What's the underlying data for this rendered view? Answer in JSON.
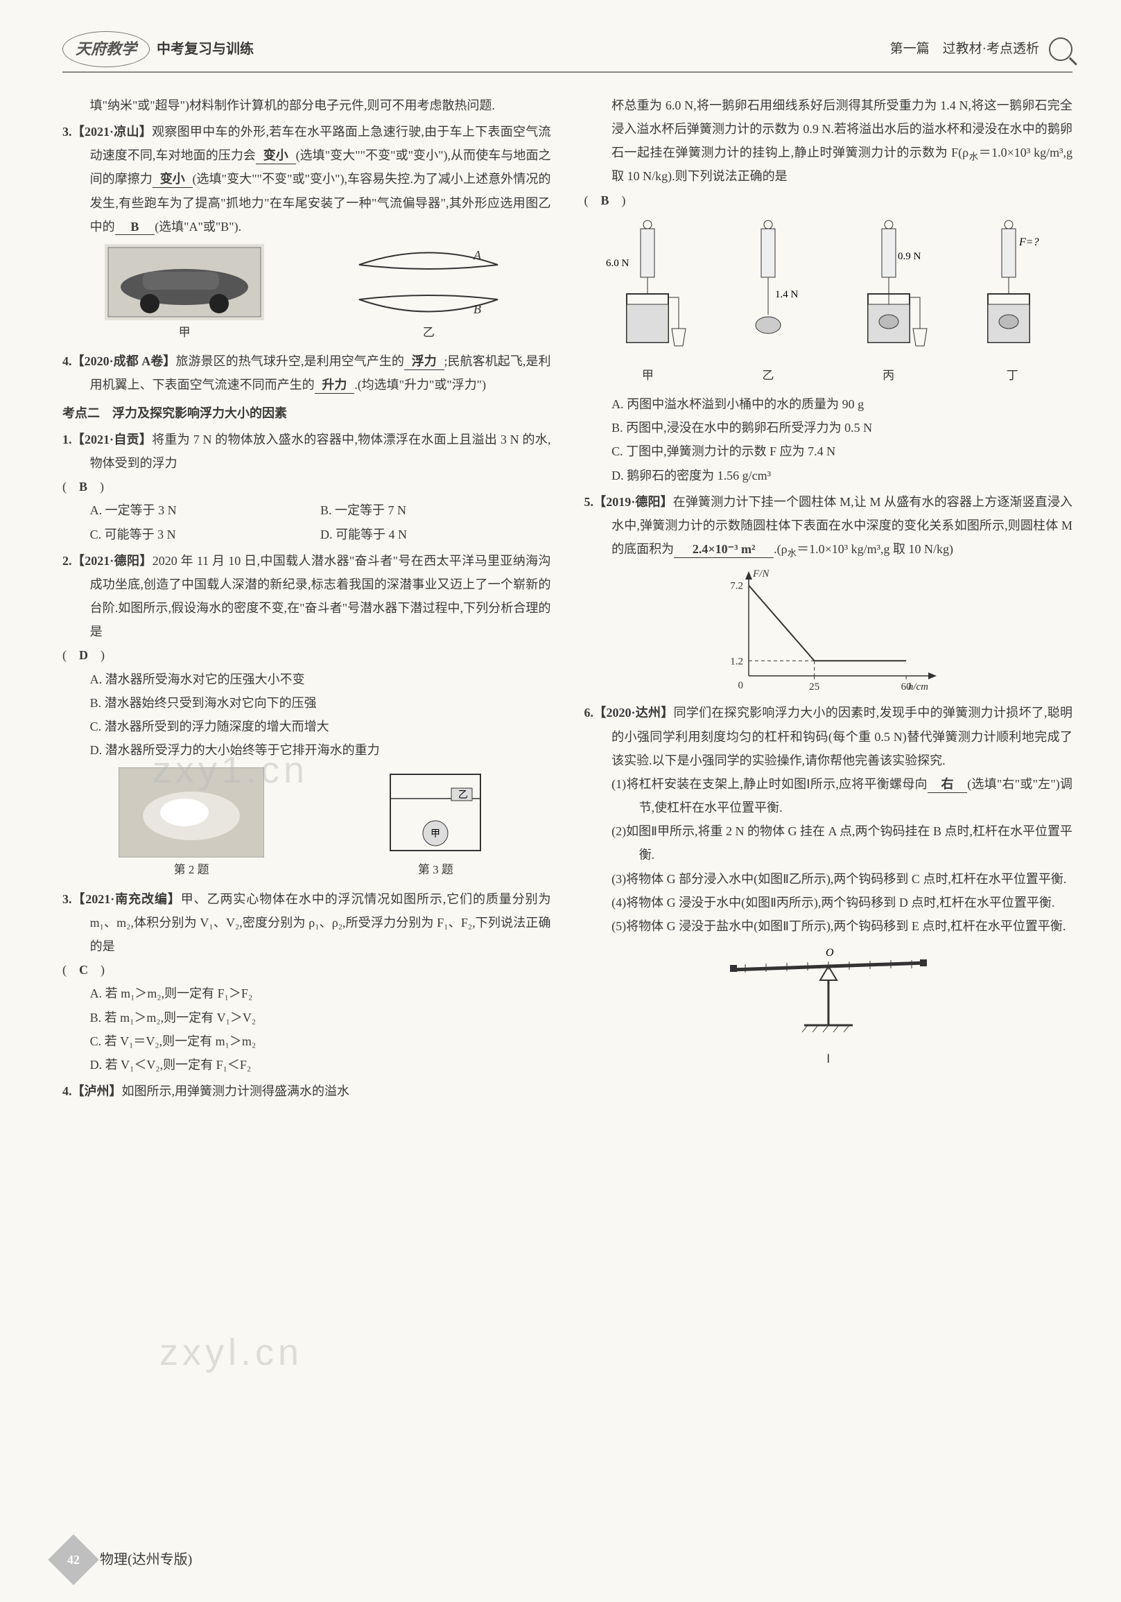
{
  "header": {
    "logo": "天府教学",
    "logo_sub": "中考复习与训练",
    "right": "第一篇　过教材·考点透析"
  },
  "footer": {
    "page_num": "42",
    "label": "物理(达州专版)"
  },
  "left": {
    "pre_text": "填\"纳米\"或\"超导\")材料制作计算机的部分电子元件,则可不用考虑散热问题.",
    "q3": {
      "src": "3.【2021·凉山】",
      "text_a": "观察图甲中车的外形,若车在水平路面上急速行驶,由于车上下表面空气流动速度不同,车对地面的压力会",
      "blank1": "变小",
      "text_b": "(选填\"变大\"\"不变\"或\"变小\"),从而使车与地面之间的摩擦力",
      "blank2": "变小",
      "text_c": "(选填\"变大\"\"不变\"或\"变小\"),车容易失控.为了减小上述意外情况的发生,有些跑车为了提高\"抓地力\"在车尾安装了一种\"气流偏导器\",其外形应选用图乙中的",
      "blank3": "B",
      "text_d": "(选填\"A\"或\"B\")."
    },
    "q4": {
      "src": "4.【2020·成都 A卷】",
      "text_a": "旅游景区的热气球升空,是利用空气产生的",
      "blank1": "浮力",
      "text_b": ";民航客机起飞,是利用机翼上、下表面空气流速不同而产生的",
      "blank2": "升力",
      "text_c": ".(均选填\"升力\"或\"浮力\")"
    },
    "topic2": "考点二　浮力及探究影响浮力大小的因素",
    "t2q1": {
      "src": "1.【2021·自贡】",
      "text": "将重为 7 N 的物体放入盛水的容器中,物体漂浮在水面上且溢出 3 N 的水,物体受到的浮力",
      "answer": "B",
      "opts": {
        "A": "A. 一定等于 3 N",
        "B": "B. 一定等于 7 N",
        "C": "C. 可能等于 3 N",
        "D": "D. 可能等于 4 N"
      }
    },
    "t2q2": {
      "src": "2.【2021·德阳】",
      "text": "2020 年 11 月 10 日,中国载人潜水器\"奋斗者\"号在西太平洋马里亚纳海沟成功坐底,创造了中国载人深潜的新纪录,标志着我国的深潜事业又迈上了一个崭新的台阶.如图所示,假设海水的密度不变,在\"奋斗者\"号潜水器下潜过程中,下列分析合理的是",
      "answer": "D",
      "opts": {
        "A": "A. 潜水器所受海水对它的压强大小不变",
        "B": "B. 潜水器始终只受到海水对它向下的压强",
        "C": "C. 潜水器所受到的浮力随深度的增大而增大",
        "D": "D. 潜水器所受浮力的大小始终等于它排开海水的重力"
      },
      "cap2": "第 2 题",
      "cap3": "第 3 题"
    },
    "t2q3": {
      "src": "3.【2021·南充改编】",
      "text_a": "甲、乙两实心物体在水中的浮沉情况如图所示,它们的质量分别为 m₁、m₂,体积分别为 V₁、V₂,密度分别为 ρ₁、ρ₂,所受浮力分别为 F₁、F₂,下列说法正确的是",
      "answer": "C",
      "opts": {
        "A": "A. 若 m₁＞m₂,则一定有 F₁＞F₂",
        "B": "B. 若 m₁＞m₂,则一定有 V₁＞V₂",
        "C": "C. 若 V₁＝V₂,则一定有 m₁＞m₂",
        "D": "D. 若 V₁＜V₂,则一定有 F₁＜F₂"
      }
    },
    "t2q4": {
      "src": "4.【泸州】",
      "text": "如图所示,用弹簧测力计测得盛满水的溢水"
    }
  },
  "right": {
    "cont_a": "杯总重为 6.0 N,将一鹅卵石用细线系好后测得其所受重力为 1.4 N,将这一鹅卵石完全浸入溢水杯后弹簧测力计的示数为 0.9 N.若将溢出水后的溢水杯和浸没在水中的鹅卵石一起挂在弹簧测力计的挂钩上,静止时弹簧测力计的示数为 F(ρ",
    "cont_b": "＝1.0×10³ kg/m³,g 取 10 N/kg).则下列说法正确的是",
    "cont_answer": "B",
    "fig_labels": {
      "a": "甲",
      "b": "乙",
      "c": "丙",
      "d": "丁",
      "v1": "6.0 N",
      "v2": "1.4 N",
      "v3": "0.9 N",
      "v4": "F=?"
    },
    "r_opts": {
      "A": "A. 丙图中溢水杯溢到小桶中的水的质量为 90 g",
      "B": "B. 丙图中,浸没在水中的鹅卵石所受浮力为 0.5 N",
      "C": "C. 丁图中,弹簧测力计的示数 F 应为 7.4 N",
      "D": "D. 鹅卵石的密度为 1.56 g/cm³"
    },
    "q5": {
      "src": "5.【2019·德阳】",
      "text_a": "在弹簧测力计下挂一个圆柱体 M,让 M 从盛有水的容器上方逐渐竖直浸入水中,弹簧测力计的示数随圆柱体下表面在水中深度的变化关系如图所示,则圆柱体 M 的底面积为",
      "blank": "2.4×10⁻³ m²",
      "text_b": ".(ρ",
      "text_c": "＝1.0×10³ kg/m³,g 取 10 N/kg)"
    },
    "chart": {
      "type": "line",
      "x_label": "h/cm",
      "y_label": "F/N",
      "y_ticks": [
        "1.2",
        "7.2"
      ],
      "x_ticks": [
        "0",
        "25",
        "60"
      ],
      "points": [
        [
          0,
          7.2
        ],
        [
          25,
          1.2
        ],
        [
          60,
          1.2
        ]
      ],
      "xlim": [
        0,
        70
      ],
      "ylim": [
        0,
        8
      ],
      "axis_color": "#333",
      "line_color": "#333",
      "dash_color": "#333",
      "bg": "#faf8f3",
      "fontsize": 15
    },
    "q6": {
      "src": "6.【2020·达州】",
      "text": "同学们在探究影响浮力大小的因素时,发现手中的弹簧测力计损坏了,聪明的小强同学利用刻度均匀的杠杆和钩码(每个重 0.5 N)替代弹簧测力计顺利地完成了该实验.以下是小强同学的实验操作,请你帮他完善该实验探究.",
      "s1a": "(1)将杠杆安装在支架上,静止时如图Ⅰ所示,应将平衡螺母向",
      "s1_blank": "右",
      "s1b": "(选填\"右\"或\"左\")调节,使杠杆在水平位置平衡.",
      "s2": "(2)如图Ⅱ甲所示,将重 2 N 的物体 G 挂在 A 点,两个钩码挂在 B 点时,杠杆在水平位置平衡.",
      "s3": "(3)将物体 G 部分浸入水中(如图Ⅱ乙所示),两个钩码移到 C 点时,杠杆在水平位置平衡.",
      "s4": "(4)将物体 G 浸没于水中(如图Ⅱ丙所示),两个钩码移到 D 点时,杠杆在水平位置平衡.",
      "s5": "(5)将物体 G 浸没于盐水中(如图Ⅱ丁所示),两个钩码移到 E 点时,杠杆在水平位置平衡.",
      "fig_label": "Ⅰ"
    }
  },
  "watermarks": {
    "w1": "zxy1.cn",
    "w2": "zxyl.cn"
  }
}
